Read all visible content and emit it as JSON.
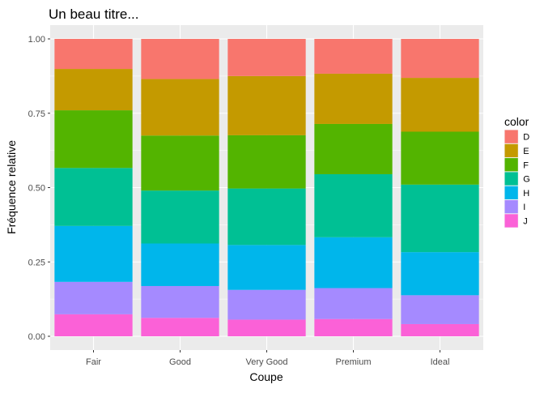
{
  "chart_data": {
    "type": "bar",
    "stacked": true,
    "normalized": true,
    "title": "Un beau titre...",
    "xlabel": "Coupe",
    "ylabel": "Fréquence relative",
    "categories": [
      "Fair",
      "Good",
      "Very Good",
      "Premium",
      "Ideal"
    ],
    "ylim": [
      0,
      1
    ],
    "yticks": [
      "0.00",
      "0.25",
      "0.50",
      "0.75",
      "1.00"
    ],
    "ytick_values": [
      0,
      0.25,
      0.5,
      0.75,
      1
    ],
    "grid": true,
    "background": "#ebebeb",
    "legend": {
      "title": "color",
      "position": "right"
    },
    "series": [
      {
        "name": "D",
        "color": "#F8766D",
        "values": [
          0.101,
          0.135,
          0.125,
          0.117,
          0.131
        ]
      },
      {
        "name": "E",
        "color": "#C49A00",
        "values": [
          0.139,
          0.19,
          0.199,
          0.169,
          0.181
        ]
      },
      {
        "name": "F",
        "color": "#53B400",
        "values": [
          0.194,
          0.185,
          0.179,
          0.169,
          0.178
        ]
      },
      {
        "name": "G",
        "color": "#00C094",
        "values": [
          0.195,
          0.178,
          0.19,
          0.212,
          0.227
        ]
      },
      {
        "name": "H",
        "color": "#00B6EB",
        "values": [
          0.188,
          0.143,
          0.151,
          0.171,
          0.145
        ]
      },
      {
        "name": "I",
        "color": "#A58AFF",
        "values": [
          0.109,
          0.107,
          0.1,
          0.104,
          0.097
        ]
      },
      {
        "name": "J",
        "color": "#FB61D7",
        "values": [
          0.074,
          0.062,
          0.056,
          0.058,
          0.041
        ]
      }
    ]
  }
}
